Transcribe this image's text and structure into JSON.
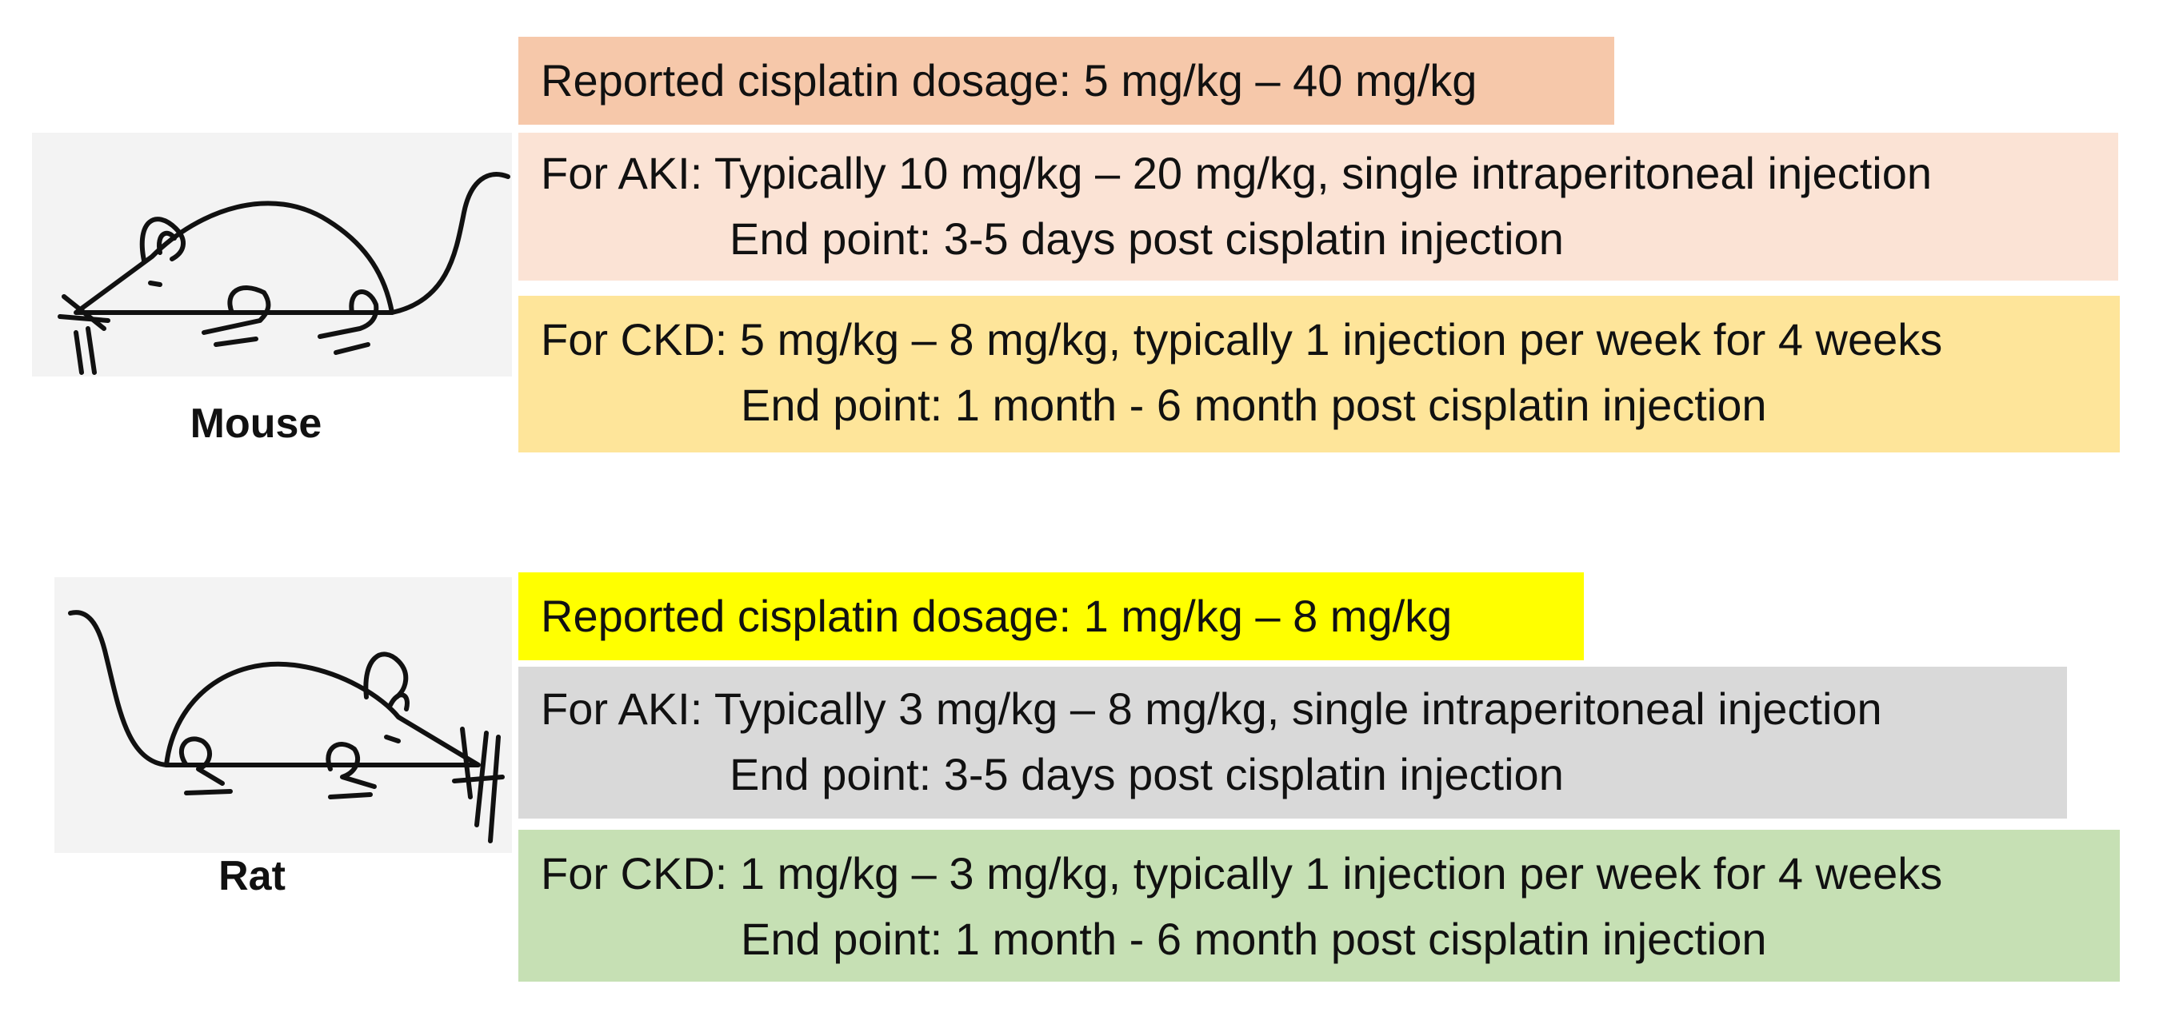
{
  "mouse": {
    "label": "Mouse",
    "image_icon": "mouse-drawing",
    "reported": {
      "text": "Reported cisplatin dosage: 5 mg/kg – 40 mg/kg",
      "color": "#f6c8aa"
    },
    "aki": {
      "line1": "For AKI: Typically 10 mg/kg – 20 mg/kg, single intraperitoneal injection",
      "line2": "End point: 3-5 days post cisplatin injection",
      "color": "#fbe3d5"
    },
    "ckd": {
      "line1": "For CKD: 5 mg/kg – 8 mg/kg, typically 1 injection per week for 4 weeks",
      "line2": "End point: 1 month - 6 month post cisplatin injection",
      "color": "#fee59a"
    }
  },
  "rat": {
    "label": "Rat",
    "image_icon": "rat-drawing",
    "reported": {
      "text": "Reported cisplatin dosage: 1 mg/kg – 8 mg/kg",
      "color": "#ffff00"
    },
    "aki": {
      "line1": "For AKI: Typically 3 mg/kg – 8 mg/kg, single intraperitoneal injection",
      "line2": "End point: 3-5 days post cisplatin injection",
      "color": "#d9d9d9"
    },
    "ckd": {
      "line1": "For CKD: 1 mg/kg – 3 mg/kg, typically 1 injection per week for 4 weeks",
      "line2": "End point: 1 month - 6 month post cisplatin injection",
      "color": "#c6e0b4"
    }
  }
}
